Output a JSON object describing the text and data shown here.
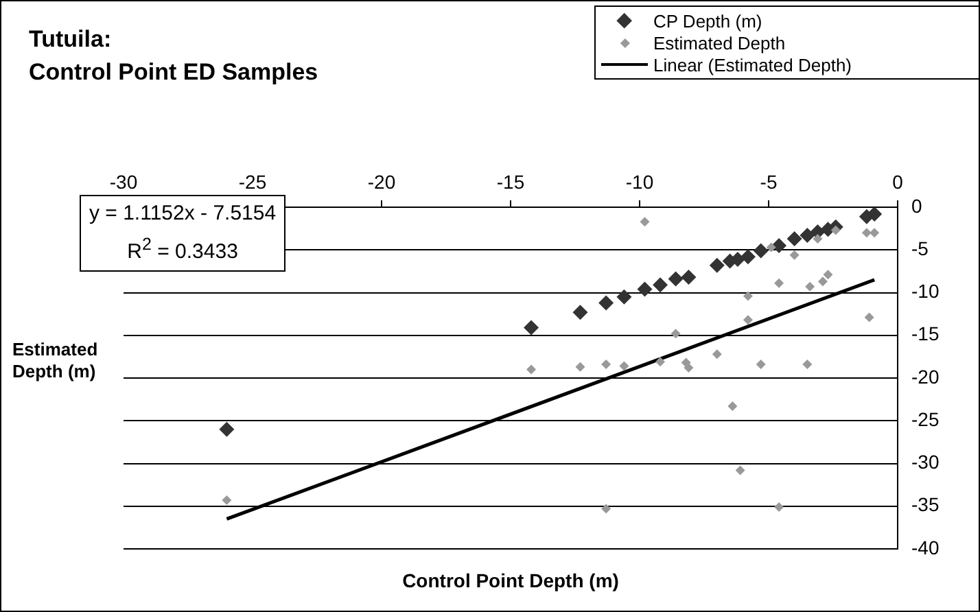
{
  "chart_data": {
    "type": "scatter",
    "title": "Tutuila:\nControl Point ED Samples",
    "xlabel": "Control Point Depth (m)",
    "ylabel": "Estimated Depth (m)",
    "annotations": [
      "y = 1.1152x - 7.5154\nR$^{2}$ = 0.3433"
    ],
    "xlim": [
      -30,
      0
    ],
    "xticks": [
      -30,
      -25,
      -20,
      -15,
      -10,
      -5,
      0
    ],
    "ylim": [
      -40,
      0
    ],
    "yticks": [
      -40,
      -35,
      -30,
      -25,
      -20,
      -15,
      -10,
      -5,
      0
    ],
    "grid": "y",
    "legend": "top right",
    "marker": "diamond",
    "series": [
      {
        "name": "CP Depth (m)",
        "color": "#333333",
        "x": [
          -26.0,
          -14.2,
          -12.3,
          -11.3,
          -10.6,
          -9.8,
          -9.2,
          -8.6,
          -8.1,
          -7.0,
          -6.5,
          -6.2,
          -5.8,
          -5.3,
          -4.6,
          -4.0,
          -3.5,
          -3.1,
          -2.7,
          -2.4,
          -1.2,
          -0.9
        ],
        "values": [
          -26.0,
          -14.1,
          -12.3,
          -11.2,
          -10.5,
          -9.6,
          -9.1,
          -8.4,
          -8.2,
          -6.8,
          -6.3,
          -6.1,
          -5.8,
          -5.1,
          -4.5,
          -3.7,
          -3.3,
          -2.9,
          -2.6,
          -2.3,
          -1.1,
          -0.8
        ]
      },
      {
        "name": "Estimated Depth",
        "color": "#999999",
        "x": [
          -26.0,
          -14.2,
          -12.3,
          -11.3,
          -11.3,
          -10.6,
          -9.8,
          -9.2,
          -8.6,
          -8.2,
          -8.1,
          -7.0,
          -6.4,
          -6.1,
          -5.8,
          -5.8,
          -5.3,
          -4.9,
          -4.6,
          -4.6,
          -4.0,
          -3.5,
          -3.4,
          -3.1,
          -2.9,
          -2.7,
          -2.4,
          -1.2,
          -1.1,
          -0.9
        ],
        "values": [
          -34.3,
          -19.0,
          -18.7,
          -18.4,
          -35.3,
          -18.6,
          -1.7,
          -18.1,
          -14.8,
          -18.2,
          -18.8,
          -17.2,
          -23.3,
          -30.8,
          -10.4,
          -13.2,
          -18.4,
          -4.7,
          -8.9,
          -35.1,
          -5.6,
          -18.4,
          -9.3,
          -3.7,
          -8.7,
          -7.9,
          -2.7,
          -3.0,
          -12.9,
          -3.0
        ]
      },
      {
        "name": "Linear (Estimated Depth)",
        "type": "line",
        "marker": "none",
        "color": "#000000",
        "x": [
          -26.0,
          -0.9
        ],
        "values": [
          -36.5,
          -8.5
        ]
      }
    ]
  }
}
